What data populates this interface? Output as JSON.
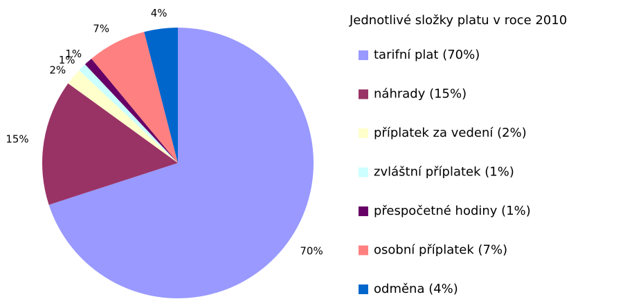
{
  "chart_data": {
    "type": "pie",
    "title": "Jednotlivé složky platu v roce 2010",
    "categories": [
      "tarifní plat (70%)",
      "náhrady (15%)",
      "příplatek za vedení (2%)",
      "zvláštní příplatek (1%)",
      "přespočetné hodiny (1%)",
      "osobní příplatek (7%)",
      "odměna (4%)"
    ],
    "values": [
      70,
      15,
      2,
      1,
      1,
      7,
      4
    ],
    "value_labels": [
      "70%",
      "15%",
      "2%",
      "1%",
      "1%",
      "7%",
      "4%"
    ],
    "colors": [
      "#9999ff",
      "#993366",
      "#ffffcc",
      "#ccffff",
      "#660066",
      "#ff8080",
      "#0066cc"
    ],
    "legend": "right"
  }
}
